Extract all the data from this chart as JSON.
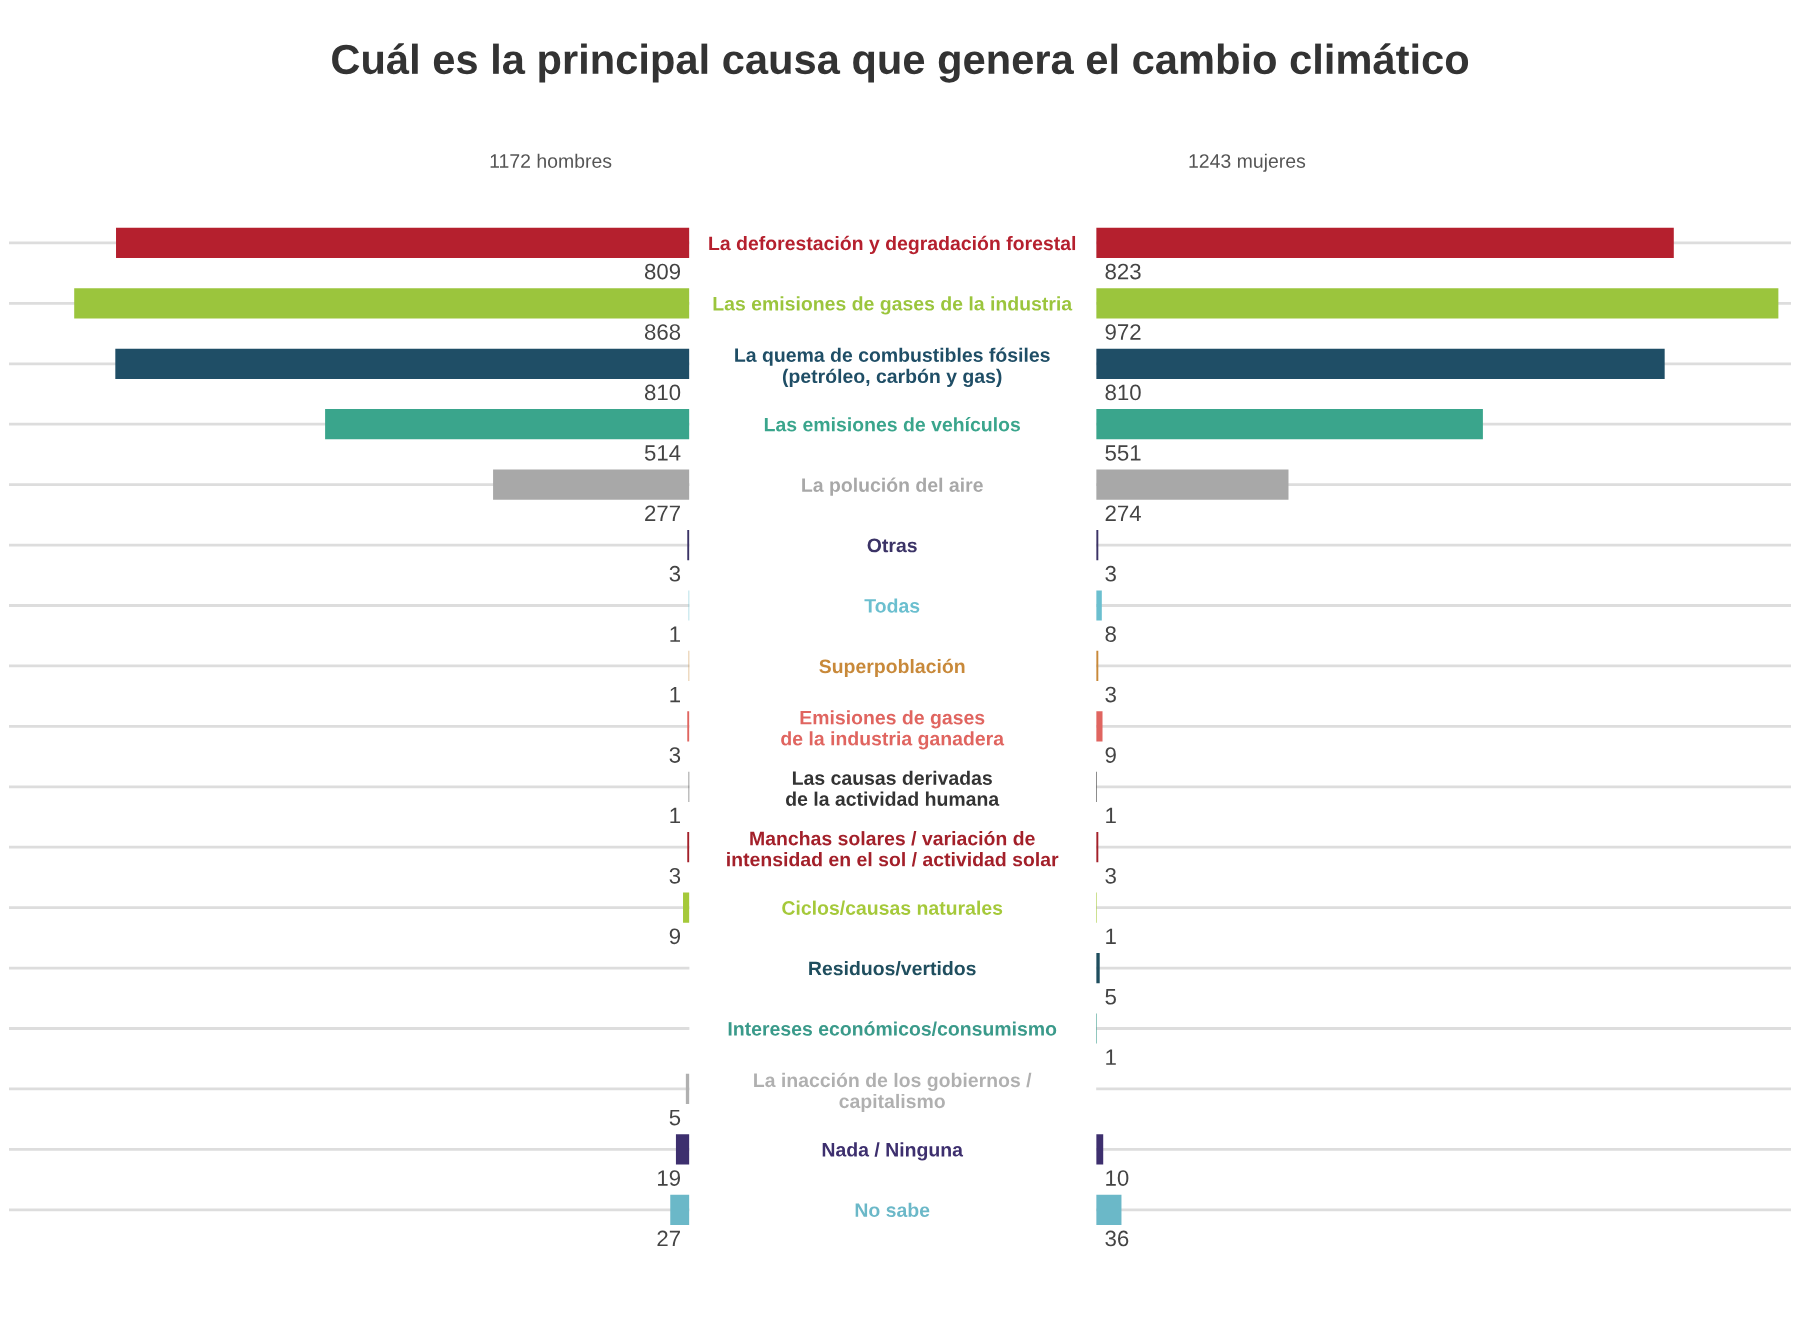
{
  "chart_data": [
    {
      "type": "bar",
      "orientation": "horizontal",
      "title": "Cuál es la principal causa que genera el cambio climático",
      "subtitle": "1172 hombres",
      "categories": [
        "La deforestación y degradación forestal",
        "Las emisiones de gases de la industria",
        "La quema de combustibles fósiles\n(petróleo, carbón y gas)",
        "Las emisiones de vehículos",
        "La polución del aire",
        "Otras",
        "Todas",
        "Superpoblación",
        "Emisiones de gases\nde la industria ganadera",
        "Las causas derivadas\nde la actividad humana",
        "Manchas solares / variación de\nintensidad en el sol / actividad solar",
        "Ciclos/causas naturales",
        "Residuos/vertidos",
        "Intereses económicos/consumismo",
        "La inacción de los gobiernos /\ncapitalismo",
        "Nada / Ninguna",
        "No sabe"
      ],
      "values": [
        809,
        868,
        810,
        514,
        277,
        3,
        1,
        1,
        3,
        1,
        3,
        9,
        null,
        null,
        5,
        19,
        27
      ],
      "colors": [
        "#b5202e",
        "#9bc53d",
        "#1f4e66",
        "#3aa58c",
        "#a8a8a8",
        "#3b3366",
        "#6bbfcf",
        "#c8893a",
        "#e06560",
        "#333333",
        "#a3202a",
        "#a5c93a",
        "#1f4e5e",
        "#3a9a8a",
        "#b0b0b0",
        "#3d2f6e",
        "#6bb8c8"
      ],
      "xlim": [
        960,
        0
      ],
      "data_labels": true,
      "grid": "y",
      "tick_labels": "y"
    },
    {
      "type": "bar",
      "orientation": "horizontal",
      "subtitle": "1243 mujeres",
      "values": [
        823,
        972,
        810,
        551,
        274,
        3,
        8,
        3,
        9,
        1,
        3,
        1,
        5,
        1,
        null,
        10,
        36
      ],
      "colors": [
        "#b5202e",
        "#9bc53d",
        "#1f4e66",
        "#3aa58c",
        "#a8a8a8",
        "#3b3366",
        "#6bbfcf",
        "#c8893a",
        "#e06560",
        "#333333",
        "#a3202a",
        "#a5c93a",
        "#1f4e5e",
        "#3a9a8a",
        "#b0b0b0",
        "#3d2f6e",
        "#6bb8c8"
      ],
      "xlim": [
        0,
        990
      ],
      "data_labels": true,
      "grid": "y",
      "tick_labels": false
    }
  ]
}
